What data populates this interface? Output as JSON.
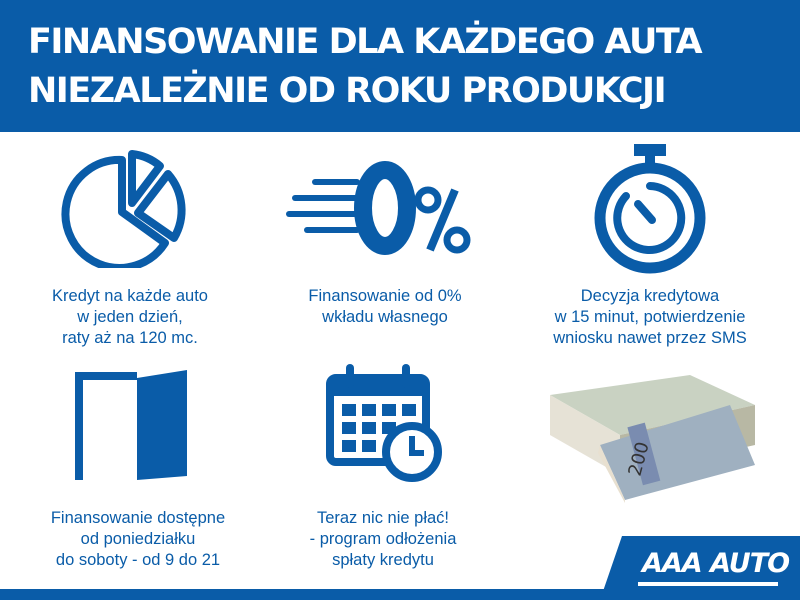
{
  "header": {
    "line1": "FINANSOWANIE DLA KAŻDEGO AUTA",
    "line2": "NIEZALEŻNIE OD ROKU PRODUKCJI"
  },
  "features": [
    {
      "icon": "pie-chart-icon",
      "lines": [
        "Kredyt na każde auto",
        "w jeden dzień,",
        "raty aż na 120 mc."
      ]
    },
    {
      "icon": "zero-percent-icon",
      "lines": [
        "Finansowanie od 0%",
        "wkładu własnego"
      ]
    },
    {
      "icon": "stopwatch-icon",
      "lines": [
        "Decyzja kredytowa",
        "w 15 minut, potwierdzenie",
        "wniosku nawet przez SMS"
      ]
    },
    {
      "icon": "open-door-icon",
      "lines": [
        "Finansowanie dostępne",
        "od poniedziałku",
        "do soboty - od 9 do 21"
      ]
    },
    {
      "icon": "calendar-clock-icon",
      "lines": [
        "Teraz nic nie płać!",
        "- program odłożenia",
        "spłaty kredytu"
      ]
    }
  ],
  "money_image": {
    "icon": "banknotes-icon",
    "note_value": "200"
  },
  "logo": {
    "text": "AAA AUTO"
  },
  "colors": {
    "brand_blue": "#0a5ca8",
    "background": "#ffffff"
  }
}
